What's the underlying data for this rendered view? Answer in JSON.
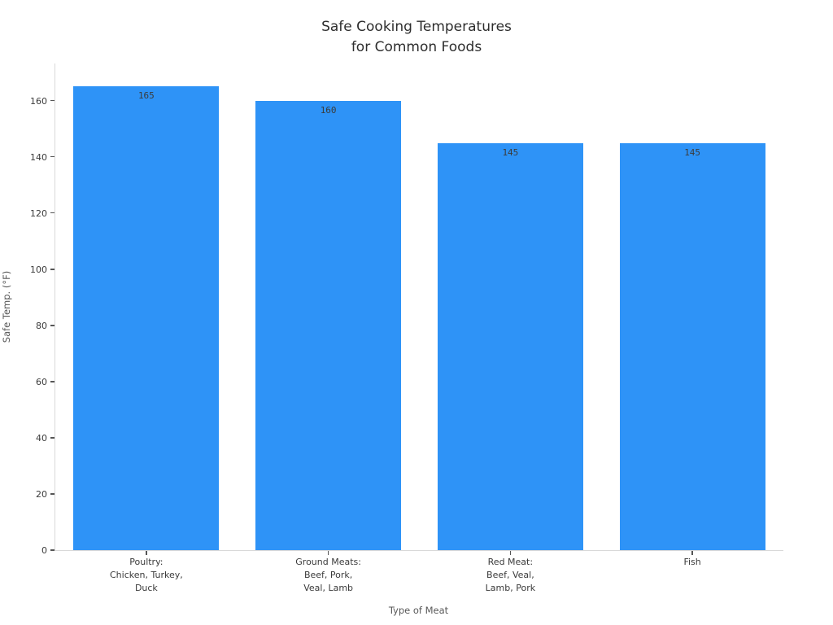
{
  "title": {
    "lines": [
      "Safe Cooking Temperatures",
      "for Common Foods"
    ]
  },
  "chart_data": {
    "type": "bar",
    "title": "Safe Cooking Temperatures\nfor Common Foods",
    "categories": [
      "Poultry:\nChicken, Turkey,\nDuck",
      "Ground Meats:\nBeef, Pork,\nVeal, Lamb",
      "Red Meat:\nBeef, Veal,\nLamb, Pork",
      "Fish"
    ],
    "category_lines": [
      [
        "Poultry:",
        "Chicken, Turkey,",
        "Duck"
      ],
      [
        "Ground Meats:",
        "Beef, Pork,",
        "Veal, Lamb"
      ],
      [
        "Red Meat:",
        "Beef, Veal,",
        "Lamb, Pork"
      ],
      [
        "Fish"
      ]
    ],
    "values": [
      165,
      160,
      145,
      145
    ],
    "bar_labels": [
      "165",
      "160",
      "145",
      "145"
    ],
    "xlabel": "Type of Meat",
    "ylabel": "Safe Temp. (°F)",
    "ylim": [
      0,
      173.25
    ],
    "yticks": [
      0,
      20,
      40,
      60,
      80,
      100,
      120,
      140,
      160
    ],
    "bar_color": "#2e93f7",
    "bar_label_color": "#3b3b3b",
    "grid": false,
    "legend": "none"
  }
}
